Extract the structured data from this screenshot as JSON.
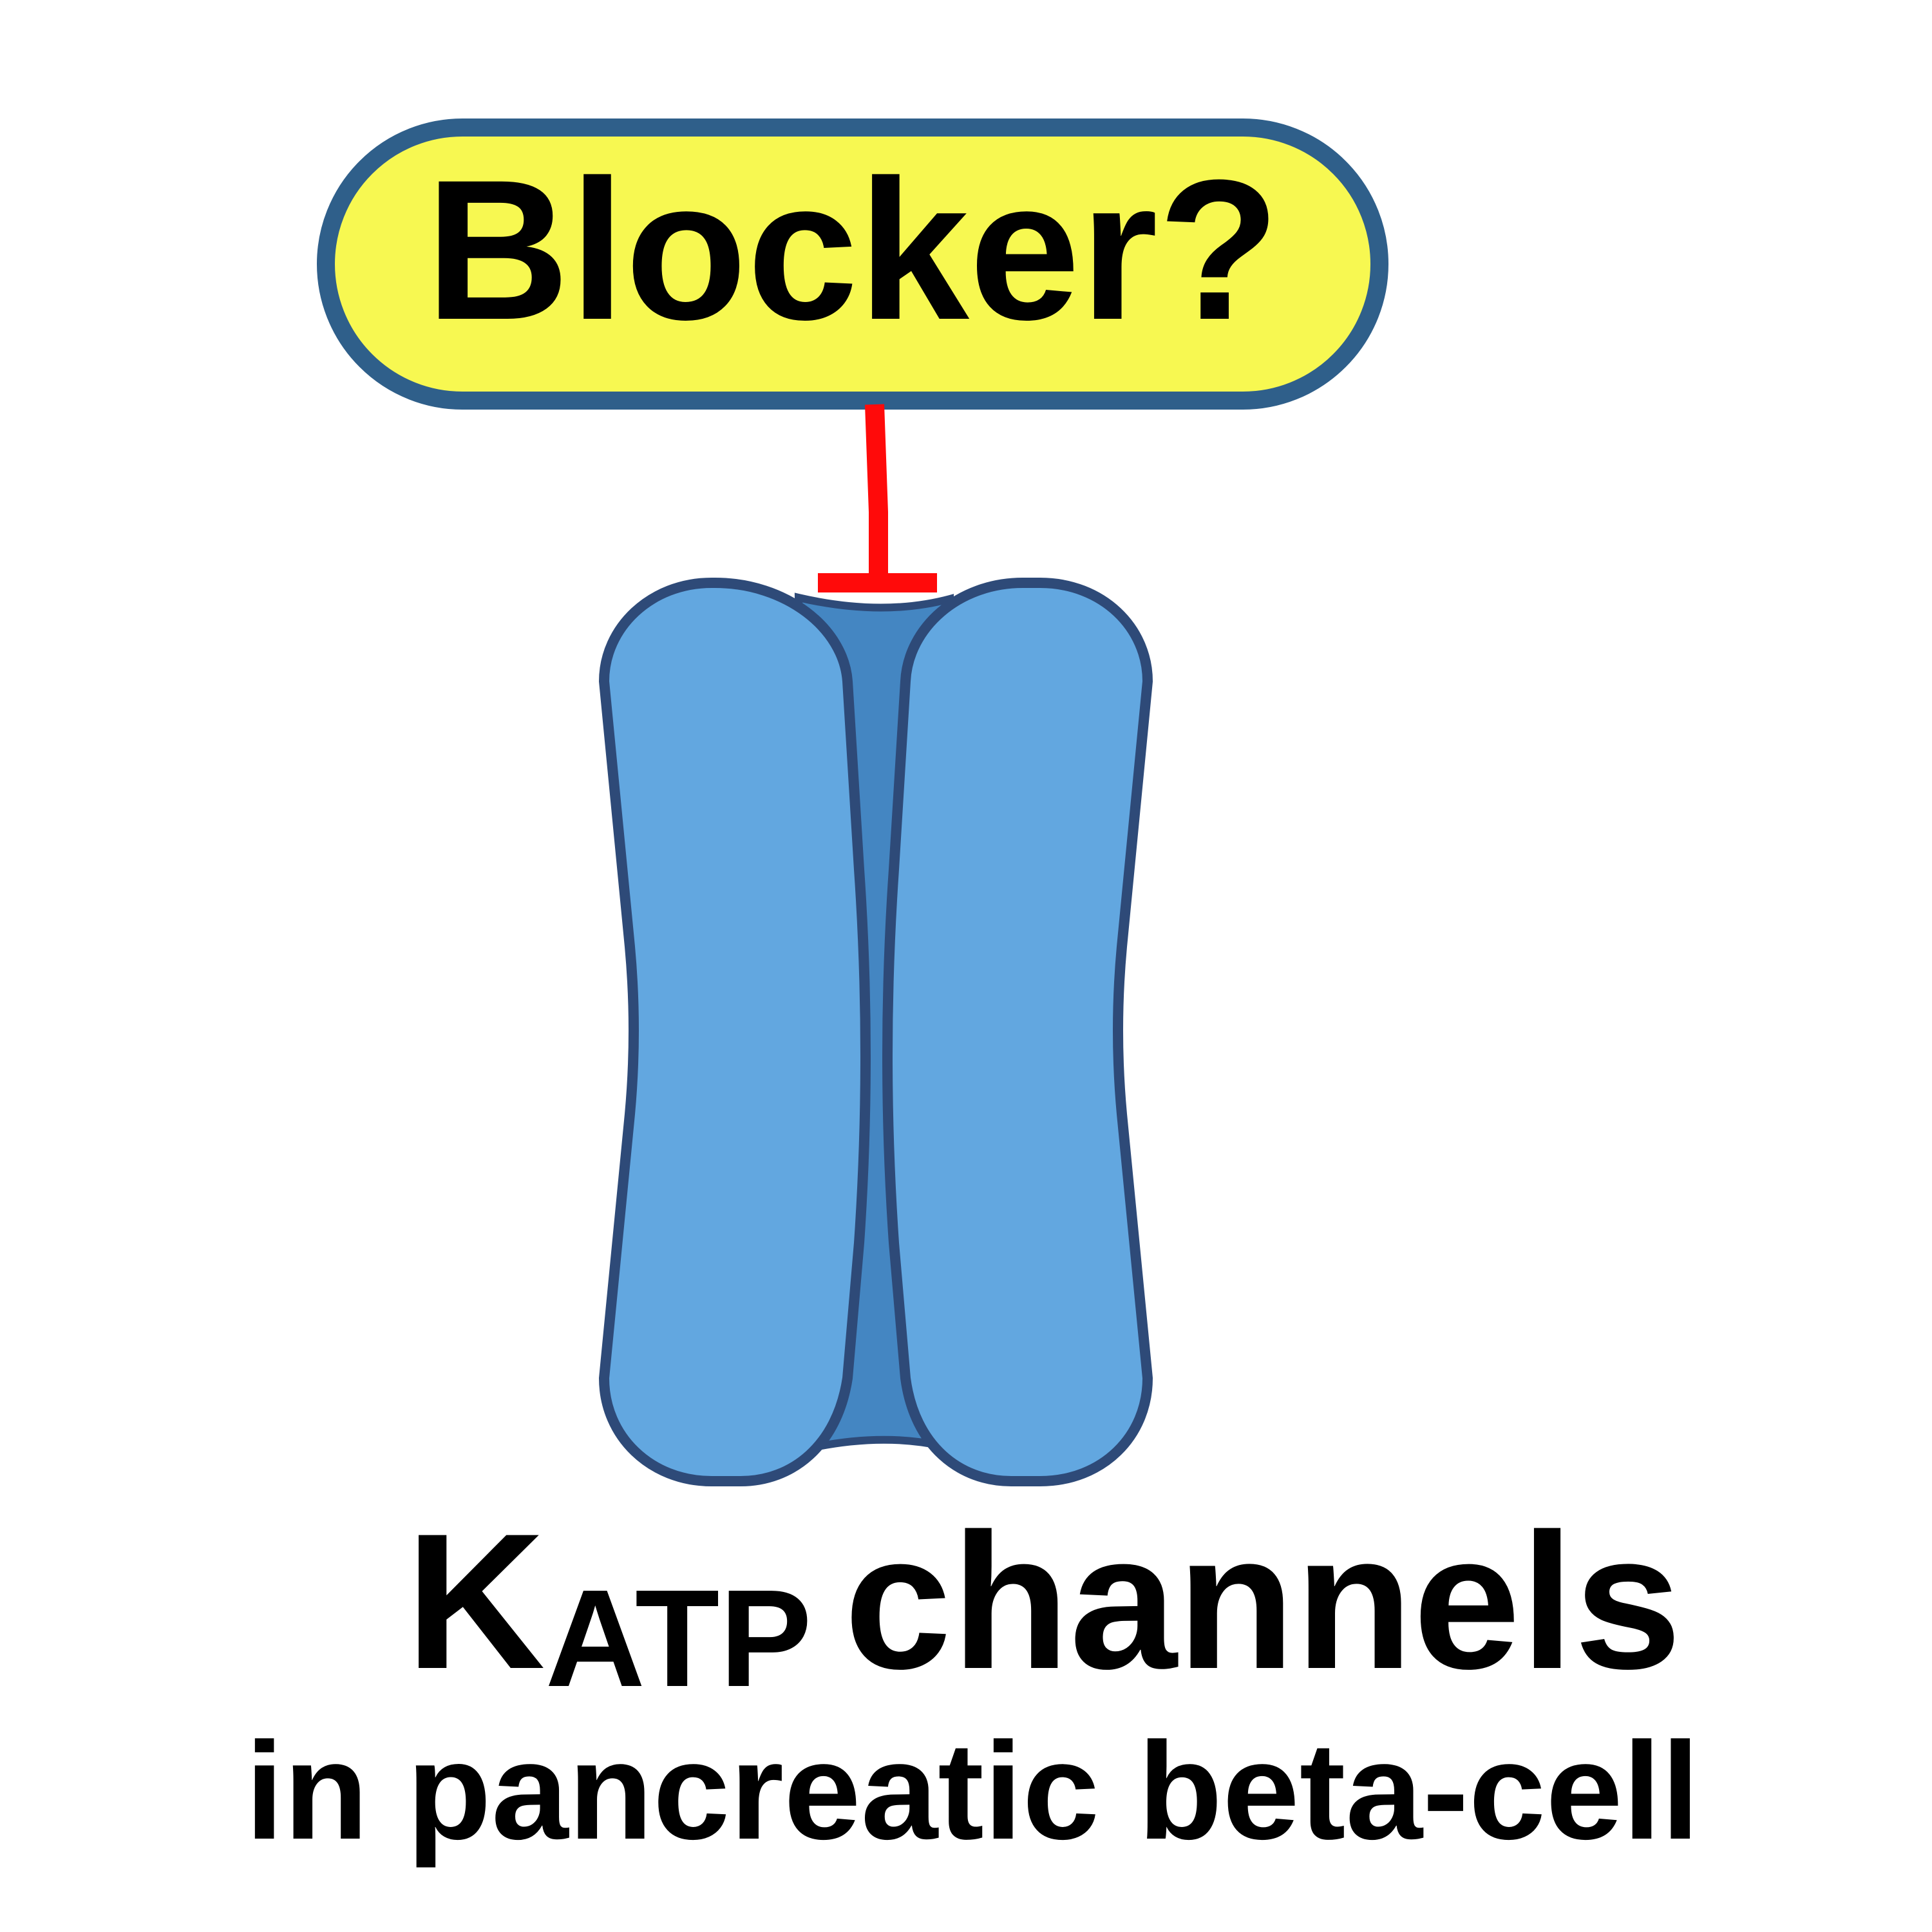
{
  "blocker": {
    "label": "Blocker?"
  },
  "channel": {
    "name_main": "K",
    "name_subscript": "ATP",
    "name_suffix": "channels",
    "location": "in pancreatic beta-cell"
  },
  "colors": {
    "blocker_fill": "#F7F851",
    "blocker_stroke": "#2F5F8A",
    "subunit_fill": "#62A7E0",
    "pore_fill": "#4486C2",
    "channel_stroke": "#2E4A78",
    "inhibition_line": "#FF0A0A",
    "text": "#000000"
  }
}
